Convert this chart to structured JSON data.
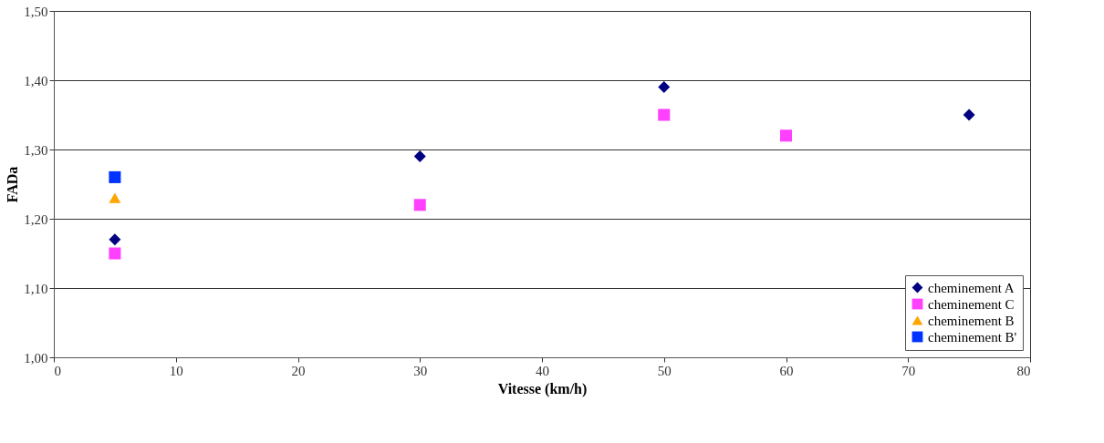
{
  "chart_data": {
    "type": "scatter",
    "xlabel": "Vitesse (km/h)",
    "ylabel": "FADa",
    "xlim": [
      0,
      80
    ],
    "xticks": [
      0,
      10,
      20,
      30,
      40,
      50,
      60,
      70,
      80
    ],
    "ylim": [
      1.0,
      1.5
    ],
    "yticks": [
      {
        "value": 1.0,
        "label": "1,00"
      },
      {
        "value": 1.1,
        "label": "1,10"
      },
      {
        "value": 1.2,
        "label": "1,20"
      },
      {
        "value": 1.3,
        "label": "1,30"
      },
      {
        "value": 1.4,
        "label": "1,40"
      },
      {
        "value": 1.5,
        "label": "1,50"
      }
    ],
    "grid": "y",
    "legend": "bottom right",
    "series": [
      {
        "name": "cheminement A",
        "color": "#000080",
        "marker": "diamond",
        "x": [
          5,
          30,
          50,
          75
        ],
        "values": [
          1.17,
          1.29,
          1.39,
          1.35
        ]
      },
      {
        "name": "cheminement C",
        "color": "#ff40ff",
        "marker": "square",
        "x": [
          5,
          30,
          50,
          60
        ],
        "values": [
          1.15,
          1.22,
          1.35,
          1.32
        ]
      },
      {
        "name": "cheminement B",
        "color": "#ffa500",
        "marker": "triangle",
        "x": [
          5
        ],
        "values": [
          1.23
        ]
      },
      {
        "name": "cheminement B'",
        "color": "#0033ff",
        "marker": "square",
        "x": [
          5
        ],
        "values": [
          1.26
        ]
      }
    ]
  }
}
